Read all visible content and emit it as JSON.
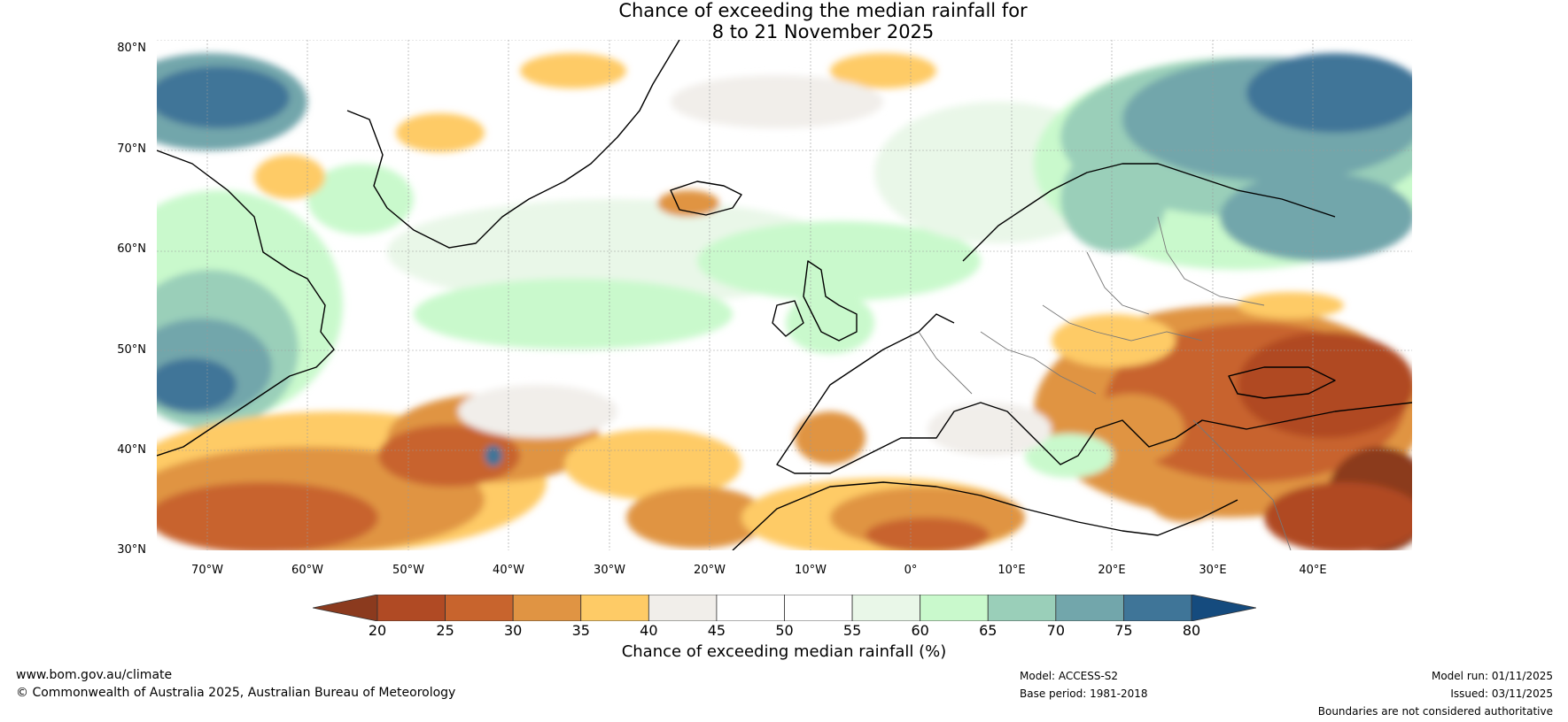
{
  "title": {
    "line1": "Chance of exceeding the median rainfall for",
    "line2": "8 to 21 November 2025"
  },
  "map": {
    "lat_labels": [
      "80°N",
      "70°N",
      "60°N",
      "50°N",
      "40°N",
      "30°N"
    ],
    "lon_labels": [
      "70°W",
      "60°W",
      "50°W",
      "40°W",
      "30°W",
      "20°W",
      "10°W",
      "0°",
      "10°E",
      "20°E",
      "30°E",
      "40°E"
    ],
    "regions": [
      "greenland",
      "iceland",
      "scandinavia",
      "british-isles",
      "north-africa",
      "canada-east",
      "europe-continent"
    ]
  },
  "colorbar": {
    "title": "Chance of exceeding median rainfall (%)",
    "labels": [
      "20",
      "25",
      "30",
      "35",
      "40",
      "45",
      "50",
      "55",
      "60",
      "65",
      "70",
      "75",
      "80"
    ],
    "colors": [
      "#8b3a1e",
      "#b04a24",
      "#c8642d",
      "#e09443",
      "#fecb66",
      "#f1eeea",
      "#ffffff",
      "#ffffff",
      "#e9f7e8",
      "#c9f9cc",
      "#9acfb9",
      "#72a6ab",
      "#3f7598",
      "#154b7e"
    ]
  },
  "footer": {
    "website": "www.bom.gov.au/climate",
    "copyright": "© Commonwealth of Australia 2025, Australian Bureau of Meteorology",
    "model": "Model: ACCESS-S2",
    "base_period": "Base period: 1981-2018",
    "model_run": "Model run: 01/11/2025",
    "issued": "Issued: 03/11/2025",
    "disclaimer": "Boundaries are not considered authoritative"
  }
}
